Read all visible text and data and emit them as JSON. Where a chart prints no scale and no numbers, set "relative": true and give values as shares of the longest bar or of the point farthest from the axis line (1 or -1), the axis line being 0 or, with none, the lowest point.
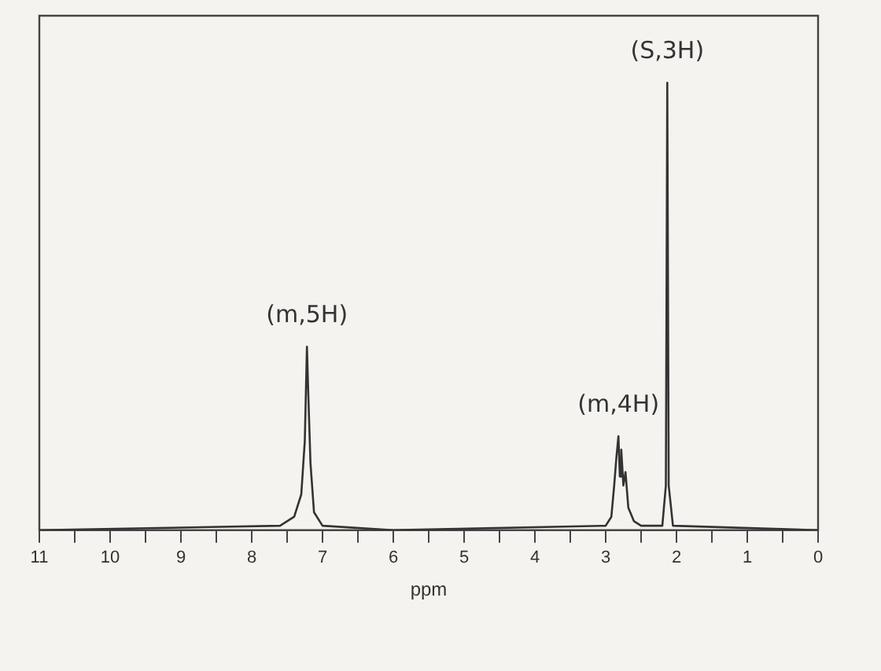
{
  "chart_data": {
    "type": "line",
    "relative": true,
    "xlabel": "ppm",
    "xlim": [
      11,
      0
    ],
    "xticks": [
      11,
      {
        "value": 10.5,
        "label": null
      },
      10,
      {
        "value": 9.5,
        "label": null
      },
      9,
      {
        "value": 8.5,
        "label": null
      },
      8,
      {
        "value": 7.5,
        "label": null
      },
      7,
      {
        "value": 6.5,
        "label": null
      },
      6,
      {
        "value": 5.5,
        "label": null
      },
      5,
      {
        "value": 4.5,
        "label": null
      },
      4,
      {
        "value": 3.5,
        "label": null
      },
      3,
      {
        "value": 2.5,
        "label": null
      },
      2,
      {
        "value": 1.5,
        "label": null
      },
      1,
      {
        "value": 0.5,
        "label": null
      },
      0
    ],
    "series": [
      {
        "color": "#333333",
        "x": [
          11,
          7.6,
          7.4,
          7.3,
          7.25,
          7.22,
          7.2,
          7.17,
          7.12,
          7.0,
          6,
          3.0,
          2.92,
          2.88,
          2.85,
          2.82,
          2.8,
          2.78,
          2.75,
          2.72,
          2.68,
          2.6,
          2.5,
          2.2,
          2.15,
          2.13,
          2.11,
          2.05,
          0
        ],
        "values": [
          0,
          0.01,
          0.03,
          0.08,
          0.2,
          0.41,
          0.3,
          0.15,
          0.04,
          0.01,
          0,
          0.01,
          0.03,
          0.1,
          0.16,
          0.21,
          0.12,
          0.18,
          0.1,
          0.13,
          0.05,
          0.02,
          0.01,
          0.01,
          0.1,
          1,
          0.1,
          0.01,
          0
        ]
      }
    ],
    "annotations": [
      {
        "text": "(m,5H)",
        "x": 7.22,
        "y": 0.41
      },
      {
        "text": "(m,4H)",
        "x": 2.82,
        "y": 0.21
      },
      {
        "text": "(S,3H)",
        "x": 2.13,
        "y": 1
      }
    ],
    "grid": false,
    "legend": false,
    "marker": "none",
    "line_style": "solid"
  }
}
